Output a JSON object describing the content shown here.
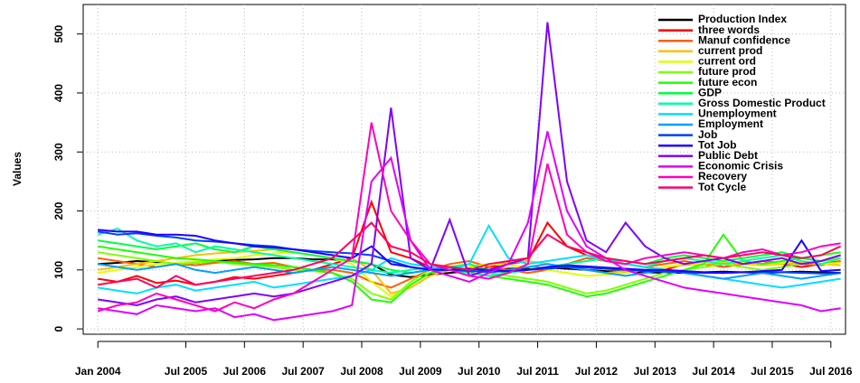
{
  "chart_data": {
    "type": "line",
    "y_label": "Values",
    "x": [
      "2004-01",
      "2004-05",
      "2004-09",
      "2005-01",
      "2005-05",
      "2005-09",
      "2006-01",
      "2006-05",
      "2006-09",
      "2007-01",
      "2007-05",
      "2007-09",
      "2008-01",
      "2008-05",
      "2008-09",
      "2009-01",
      "2009-05",
      "2009-09",
      "2010-01",
      "2010-05",
      "2010-09",
      "2011-01",
      "2011-05",
      "2011-09",
      "2012-01",
      "2012-05",
      "2012-09",
      "2013-01",
      "2013-05",
      "2013-09",
      "2014-01",
      "2014-05",
      "2014-09",
      "2015-01",
      "2015-05",
      "2015-09",
      "2016-01",
      "2016-05",
      "2016-09"
    ],
    "xlim": [
      "2003-10",
      "2016-10"
    ],
    "xticks": [
      {
        "value": "2004-01",
        "label": "Jan 2004"
      },
      {
        "value": "2005-07",
        "label": "Jul 2005"
      },
      {
        "value": "2006-07",
        "label": "Jul 2006"
      },
      {
        "value": "2007-07",
        "label": "Jul 2007"
      },
      {
        "value": "2008-07",
        "label": "Jul 2008"
      },
      {
        "value": "2009-07",
        "label": "Jul 2009"
      },
      {
        "value": "2010-07",
        "label": "Jul 2010"
      },
      {
        "value": "2011-07",
        "label": "Jul 2011"
      },
      {
        "value": "2012-07",
        "label": "Jul 2012"
      },
      {
        "value": "2013-07",
        "label": "Jul 2013"
      },
      {
        "value": "2014-07",
        "label": "Jul 2014"
      },
      {
        "value": "2015-07",
        "label": "Jul 2015"
      },
      {
        "value": "2016-07",
        "label": "Jul 2016"
      }
    ],
    "ylim": [
      -9,
      550
    ],
    "yticks": [
      0,
      100,
      200,
      300,
      400,
      500
    ],
    "grid": true,
    "legend": "top-right",
    "series": [
      {
        "name": "Production Index",
        "color": "#000000",
        "values": [
          110,
          112,
          115,
          113,
          110,
          112,
          115,
          117,
          118,
          120,
          120,
          118,
          118,
          115,
          110,
          92,
          88,
          92,
          95,
          98,
          100,
          102,
          103,
          104,
          102,
          100,
          98,
          97,
          96,
          95,
          95,
          96,
          97,
          96,
          95,
          96,
          97,
          96,
          95
        ]
      },
      {
        "name": "three words",
        "color": "#FF0000",
        "values": [
          85,
          80,
          90,
          78,
          82,
          75,
          80,
          88,
          85,
          90,
          95,
          100,
          110,
          120,
          215,
          130,
          120,
          105,
          100,
          95,
          105,
          110,
          115,
          180,
          140,
          125,
          115,
          110,
          105,
          100,
          110,
          115,
          105,
          110,
          115,
          110,
          105,
          110,
          115
        ]
      },
      {
        "name": "Manuf confidence",
        "color": "#FF6000",
        "values": [
          120,
          115,
          110,
          105,
          110,
          108,
          112,
          115,
          110,
          112,
          105,
          100,
          100,
          95,
          80,
          70,
          85,
          100,
          110,
          115,
          105,
          100,
          95,
          100,
          110,
          120,
          115,
          110,
          105,
          110,
          115,
          110,
          105,
          110,
          115,
          112,
          110,
          108,
          115
        ]
      },
      {
        "name": "current prod",
        "color": "#FFBF00",
        "values": [
          100,
          105,
          110,
          115,
          120,
          125,
          128,
          130,
          132,
          135,
          135,
          130,
          125,
          120,
          100,
          60,
          70,
          90,
          100,
          105,
          110,
          112,
          115,
          110,
          105,
          100,
          95,
          98,
          100,
          105,
          108,
          110,
          112,
          110,
          108,
          110,
          112,
          110,
          108
        ]
      },
      {
        "name": "current ord",
        "color": "#DFFF00",
        "values": [
          95,
          100,
          105,
          110,
          112,
          115,
          118,
          120,
          125,
          128,
          130,
          125,
          120,
          110,
          80,
          55,
          75,
          95,
          100,
          105,
          110,
          108,
          105,
          100,
          95,
          90,
          92,
          95,
          100,
          105,
          110,
          112,
          115,
          112,
          110,
          112,
          115,
          110,
          112
        ]
      },
      {
        "name": "future prod",
        "color": "#80FF00",
        "values": [
          130,
          125,
          120,
          115,
          110,
          112,
          115,
          110,
          108,
          105,
          100,
          98,
          95,
          85,
          60,
          50,
          80,
          100,
          105,
          100,
          95,
          90,
          85,
          80,
          70,
          60,
          65,
          75,
          85,
          95,
          100,
          105,
          110,
          105,
          100,
          105,
          110,
          115,
          120
        ]
      },
      {
        "name": "future econ",
        "color": "#20FF00",
        "values": [
          140,
          135,
          130,
          125,
          120,
          118,
          115,
          112,
          110,
          108,
          105,
          100,
          95,
          80,
          50,
          45,
          75,
          95,
          100,
          95,
          90,
          85,
          80,
          75,
          65,
          55,
          60,
          70,
          80,
          90,
          100,
          110,
          160,
          115,
          110,
          115,
          120,
          125,
          130
        ]
      },
      {
        "name": "GDP",
        "color": "#00FF40",
        "values": [
          150,
          145,
          140,
          135,
          140,
          145,
          135,
          130,
          140,
          135,
          130,
          125,
          120,
          115,
          110,
          100,
          95,
          100,
          105,
          110,
          100,
          95,
          100,
          105,
          110,
          115,
          120,
          115,
          110,
          120,
          125,
          120,
          115,
          120,
          125,
          130,
          120,
          115,
          125
        ]
      },
      {
        "name": "Gross Domestic Product",
        "color": "#00FF9F",
        "values": [
          160,
          170,
          150,
          140,
          145,
          130,
          140,
          135,
          130,
          125,
          120,
          115,
          110,
          105,
          100,
          95,
          100,
          105,
          100,
          95,
          90,
          95,
          100,
          105,
          110,
          115,
          120,
          110,
          105,
          115,
          120,
          115,
          110,
          115,
          120,
          125,
          115,
          110,
          120
        ]
      },
      {
        "name": "Unemployment",
        "color": "#00DFFF",
        "values": [
          70,
          65,
          60,
          70,
          75,
          65,
          70,
          75,
          80,
          70,
          75,
          80,
          85,
          90,
          100,
          120,
          110,
          105,
          100,
          110,
          175,
          120,
          110,
          115,
          120,
          125,
          115,
          110,
          105,
          100,
          95,
          90,
          85,
          80,
          75,
          70,
          75,
          80,
          85
        ]
      },
      {
        "name": "Employment",
        "color": "#009FFF",
        "values": [
          110,
          105,
          100,
          105,
          110,
          100,
          95,
          100,
          105,
          100,
          95,
          100,
          105,
          100,
          95,
          90,
          95,
          100,
          105,
          100,
          95,
          100,
          105,
          110,
          105,
          100,
          95,
          90,
          95,
          100,
          95,
          90,
          85,
          90,
          95,
          90,
          85,
          90,
          95
        ]
      },
      {
        "name": "Job",
        "color": "#0040FF",
        "values": [
          165,
          160,
          162,
          158,
          155,
          150,
          148,
          145,
          142,
          140,
          135,
          132,
          130,
          128,
          125,
          115,
          105,
          100,
          100,
          98,
          97,
          98,
          100,
          102,
          105,
          104,
          102,
          100,
          98,
          97,
          96,
          95,
          95,
          96,
          97,
          96,
          95,
          94,
          95
        ]
      },
      {
        "name": "Tot Job",
        "color": "#2000FF",
        "values": [
          168,
          165,
          165,
          160,
          160,
          158,
          150,
          145,
          140,
          138,
          135,
          130,
          125,
          120,
          140,
          110,
          105,
          100,
          100,
          102,
          100,
          98,
          100,
          105,
          108,
          106,
          104,
          102,
          100,
          100,
          98,
          96,
          95,
          96,
          98,
          100,
          150,
          98,
          100
        ]
      },
      {
        "name": "Public Debt",
        "color": "#8000FF",
        "values": [
          50,
          45,
          40,
          50,
          55,
          45,
          50,
          55,
          60,
          55,
          60,
          70,
          80,
          90,
          110,
          375,
          120,
          100,
          185,
          90,
          100,
          110,
          120,
          520,
          250,
          150,
          130,
          180,
          140,
          120,
          110,
          115,
          120,
          110,
          115,
          120,
          110,
          115,
          125
        ]
      },
      {
        "name": "Economic Crisis",
        "color": "#DF00FF",
        "values": [
          35,
          30,
          25,
          40,
          35,
          30,
          35,
          20,
          25,
          15,
          20,
          25,
          30,
          40,
          250,
          290,
          150,
          100,
          90,
          80,
          95,
          110,
          180,
          335,
          200,
          140,
          120,
          100,
          90,
          80,
          70,
          65,
          60,
          55,
          50,
          45,
          40,
          30,
          35
        ]
      },
      {
        "name": "Recovery",
        "color": "#FF00BF",
        "values": [
          30,
          40,
          45,
          60,
          50,
          40,
          30,
          45,
          35,
          50,
          60,
          80,
          100,
          120,
          350,
          200,
          150,
          110,
          100,
          90,
          85,
          95,
          110,
          280,
          160,
          130,
          115,
          110,
          120,
          125,
          130,
          125,
          120,
          130,
          135,
          125,
          130,
          140,
          145
        ]
      },
      {
        "name": "Tot Cycle",
        "color": "#FF0060",
        "values": [
          75,
          80,
          85,
          70,
          90,
          75,
          80,
          85,
          90,
          95,
          100,
          110,
          120,
          150,
          180,
          140,
          130,
          110,
          105,
          100,
          110,
          115,
          120,
          160,
          140,
          130,
          120,
          115,
          110,
          115,
          120,
          125,
          120,
          125,
          130,
          125,
          120,
          125,
          140
        ]
      }
    ]
  }
}
